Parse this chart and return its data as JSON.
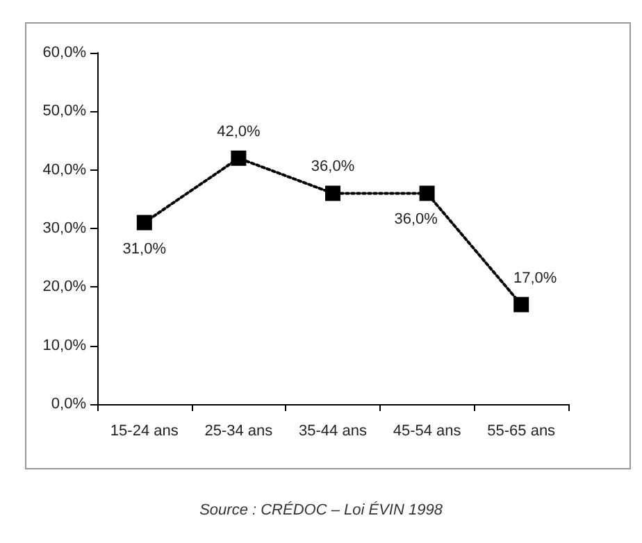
{
  "chart_data": {
    "type": "line",
    "categories": [
      "15-24 ans",
      "25-34 ans",
      "35-44 ans",
      "45-54 ans",
      "55-65 ans"
    ],
    "series": [
      {
        "color": "#000000",
        "values": [
          31,
          42,
          36,
          36,
          17
        ],
        "value_labels": [
          "31,0%",
          "42,0%",
          "36,0%",
          "36,0%",
          "17,0%"
        ]
      }
    ],
    "ylim": [
      0,
      60
    ],
    "yticks": [
      {
        "value": 0,
        "label": "0,0%"
      },
      {
        "value": 10,
        "label": "10,0%"
      },
      {
        "value": 20,
        "label": "20,0%"
      },
      {
        "value": 30,
        "label": "30,0%"
      },
      {
        "value": 40,
        "label": "40,0%"
      },
      {
        "value": 50,
        "label": "50,0%"
      },
      {
        "value": 60,
        "label": "60,0%"
      }
    ],
    "grid": false,
    "marker": "square",
    "line_style": "dotted",
    "annotations": [
      "Source : CRÉDOC – Loi ÉVIN 1998"
    ]
  }
}
